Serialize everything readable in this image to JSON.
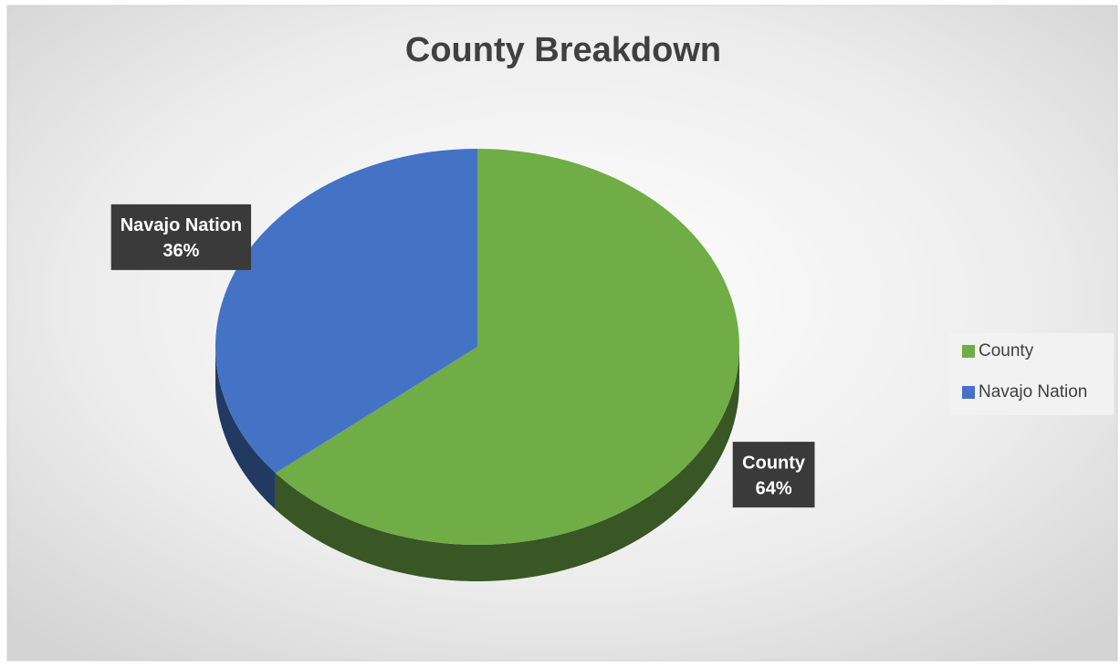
{
  "chart_data": {
    "type": "pie",
    "title": "County Breakdown",
    "categories": [
      "County",
      "Navajo Nation"
    ],
    "values": [
      64,
      36
    ],
    "value_labels": [
      "64%",
      "36%"
    ],
    "colors": [
      "#70ad47",
      "#4472c4"
    ],
    "legend": "right"
  }
}
